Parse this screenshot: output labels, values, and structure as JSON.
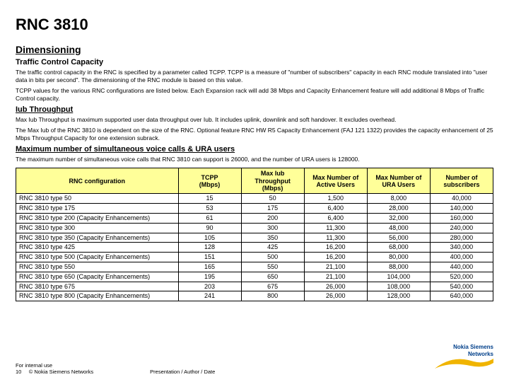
{
  "title": "RNC 3810",
  "sections": {
    "dimensioning": "Dimensioning",
    "traffic_heading": "Traffic Control Capacity",
    "traffic_p1": "The traffic control capacity in the RNC is specified by a parameter called TCPP. TCPP is a measure of \"number of subscribers\" capacity in each RNC module translated into \"user data in bits per second\". The dimensioning of the RNC module is based on this value.",
    "traffic_p2": "TCPP values for the various RNC configurations are listed below. Each Expansion rack will add 38 Mbps and Capacity Enhancement feature will add additional 8 Mbps of Traffic Control capacity.",
    "iub_heading": "Iub Throughput",
    "iub_p1": "Max Iub Throughput is maximum supported user data throughput over Iub. It includes uplink, downlink and soft handover. It excludes overhead.",
    "iub_p2": "The Max Iub of the RNC 3810 is dependent on the size of the RNC. Optional feature RNC HW R5 Capacity Enhancement (FAJ 121 1322) provides the capacity enhancement of 25 Mbps Throughput Capacity for one extension subrack.",
    "max_heading": "Maximum number of simultaneous voice calls & URA users",
    "max_p1": "The maximum number of simultaneous voice calls that RNC 3810 can support is 26000, and the number of URA users is 128000."
  },
  "table": {
    "columns": [
      "RNC configuration",
      "TCPP (Mbps)",
      "Max Iub Throughput (Mbps)",
      "Max Number of Active Users",
      "Max Number of URA Users",
      "Number of subscribers"
    ],
    "header_bg": "#ffff99",
    "rows": [
      [
        "RNC 3810 type 50",
        "15",
        "50",
        "1,500",
        "8,000",
        "40,000"
      ],
      [
        "RNC 3810 type 175",
        "53",
        "175",
        "6,400",
        "28,000",
        "140,000"
      ],
      [
        "RNC 3810 type 200 (Capacity Enhancements)",
        "61",
        "200",
        "6,400",
        "32,000",
        "160,000"
      ],
      [
        "RNC 3810 type 300",
        "90",
        "300",
        "11,300",
        "48,000",
        "240,000"
      ],
      [
        "RNC 3810 type 350 (Capacity Enhancements)",
        "105",
        "350",
        "11,300",
        "56,000",
        "280,000"
      ],
      [
        "RNC 3810 type 425",
        "128",
        "425",
        "16,200",
        "68,000",
        "340,000"
      ],
      [
        "RNC 3810 type 500 (Capacity Enhancements)",
        "151",
        "500",
        "16,200",
        "80,000",
        "400,000"
      ],
      [
        "RNC 3810 type 550",
        "165",
        "550",
        "21,100",
        "88,000",
        "440,000"
      ],
      [
        "RNC 3810 type 650 (Capacity Enhancements)",
        "195",
        "650",
        "21,100",
        "104,000",
        "520,000"
      ],
      [
        "RNC 3810 type 675",
        "203",
        "675",
        "26,000",
        "108,000",
        "540,000"
      ],
      [
        "RNC 3810 type 800 (Capacity Enhancements)",
        "241",
        "800",
        "26,000",
        "128,000",
        "640,000"
      ]
    ]
  },
  "footer": {
    "internal": "For internal use",
    "pagenum": "10",
    "copyright": "© Nokia Siemens Networks",
    "center": "Presentation / Author / Date"
  },
  "logo": {
    "top_text": "Nokia Siemens",
    "bottom_text": "Networks",
    "swoosh_color": "#f0b400",
    "text_color": "#003f8a"
  }
}
